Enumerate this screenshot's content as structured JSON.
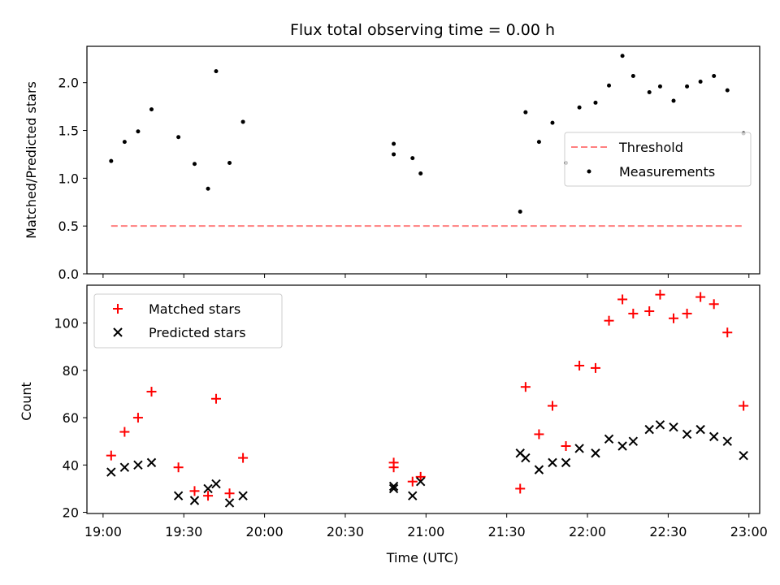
{
  "chart_data": {
    "title": "Flux total observing time = 0.00 h",
    "xlabel": "Time (UTC)",
    "x_ticks": [
      "19:00",
      "19:30",
      "20:00",
      "20:30",
      "21:00",
      "21:30",
      "22:00",
      "22:30",
      "23:00"
    ],
    "panels": [
      {
        "type": "scatter",
        "ylabel": "Matched/Predicted stars",
        "ylim": [
          0,
          2.38
        ],
        "y_ticks": [
          "0.0",
          "0.5",
          "1.0",
          "1.5",
          "2.0"
        ],
        "legend_position": "center-right",
        "series": [
          {
            "name": "Threshold",
            "style": "dashed-line",
            "color": "#ff7f7f",
            "points": [
              [
                "19:03",
                0.5
              ],
              [
                "22:58",
                0.5
              ]
            ]
          },
          {
            "name": "Measurements",
            "style": "dot",
            "color": "#000000",
            "points": [
              [
                "19:03",
                1.18
              ],
              [
                "19:08",
                1.38
              ],
              [
                "19:13",
                1.49
              ],
              [
                "19:18",
                1.72
              ],
              [
                "19:28",
                1.43
              ],
              [
                "19:34",
                1.15
              ],
              [
                "19:39",
                0.89
              ],
              [
                "19:42",
                2.12
              ],
              [
                "19:47",
                1.16
              ],
              [
                "19:52",
                1.59
              ],
              [
                "20:48",
                1.36
              ],
              [
                "20:48",
                1.25
              ],
              [
                "20:55",
                1.21
              ],
              [
                "20:58",
                1.05
              ],
              [
                "21:35",
                0.65
              ],
              [
                "21:37",
                1.69
              ],
              [
                "21:42",
                1.38
              ],
              [
                "21:47",
                1.58
              ],
              [
                "21:52",
                1.16
              ],
              [
                "21:57",
                1.74
              ],
              [
                "22:03",
                1.79
              ],
              [
                "22:08",
                1.97
              ],
              [
                "22:13",
                2.28
              ],
              [
                "22:17",
                2.07
              ],
              [
                "22:23",
                1.9
              ],
              [
                "22:27",
                1.96
              ],
              [
                "22:32",
                1.81
              ],
              [
                "22:37",
                1.96
              ],
              [
                "22:42",
                2.01
              ],
              [
                "22:47",
                2.07
              ],
              [
                "22:52",
                1.92
              ],
              [
                "22:58",
                1.47
              ]
            ]
          }
        ]
      },
      {
        "type": "scatter",
        "ylabel": "Count",
        "ylim": [
          19.5,
          116
        ],
        "y_ticks": [
          "20",
          "40",
          "60",
          "80",
          "100"
        ],
        "legend_position": "upper-left",
        "series": [
          {
            "name": "Matched stars",
            "style": "plus",
            "color": "#ff0000",
            "points": [
              [
                "19:03",
                44
              ],
              [
                "19:08",
                54
              ],
              [
                "19:13",
                60
              ],
              [
                "19:18",
                71
              ],
              [
                "19:28",
                39
              ],
              [
                "19:34",
                29
              ],
              [
                "19:39",
                27
              ],
              [
                "19:42",
                68
              ],
              [
                "19:47",
                28
              ],
              [
                "19:52",
                43
              ],
              [
                "20:48",
                41
              ],
              [
                "20:48",
                39
              ],
              [
                "20:55",
                33
              ],
              [
                "20:58",
                35
              ],
              [
                "21:35",
                30
              ],
              [
                "21:37",
                73
              ],
              [
                "21:42",
                53
              ],
              [
                "21:47",
                65
              ],
              [
                "21:52",
                48
              ],
              [
                "21:57",
                82
              ],
              [
                "22:03",
                81
              ],
              [
                "22:08",
                101
              ],
              [
                "22:13",
                110
              ],
              [
                "22:17",
                104
              ],
              [
                "22:23",
                105
              ],
              [
                "22:27",
                112
              ],
              [
                "22:32",
                102
              ],
              [
                "22:37",
                104
              ],
              [
                "22:42",
                111
              ],
              [
                "22:47",
                108
              ],
              [
                "22:52",
                96
              ],
              [
                "22:58",
                65
              ]
            ]
          },
          {
            "name": "Predicted stars",
            "style": "cross",
            "color": "#000000",
            "points": [
              [
                "19:03",
                37
              ],
              [
                "19:08",
                39
              ],
              [
                "19:13",
                40
              ],
              [
                "19:18",
                41
              ],
              [
                "19:28",
                27
              ],
              [
                "19:34",
                25
              ],
              [
                "19:39",
                30
              ],
              [
                "19:42",
                32
              ],
              [
                "19:47",
                24
              ],
              [
                "19:52",
                27
              ],
              [
                "20:48",
                31
              ],
              [
                "20:48",
                30
              ],
              [
                "20:55",
                27
              ],
              [
                "20:58",
                33
              ],
              [
                "21:35",
                45
              ],
              [
                "21:37",
                43
              ],
              [
                "21:42",
                38
              ],
              [
                "21:47",
                41
              ],
              [
                "21:52",
                41
              ],
              [
                "21:57",
                47
              ],
              [
                "22:03",
                45
              ],
              [
                "22:08",
                51
              ],
              [
                "22:13",
                48
              ],
              [
                "22:17",
                50
              ],
              [
                "22:23",
                55
              ],
              [
                "22:27",
                57
              ],
              [
                "22:32",
                56
              ],
              [
                "22:37",
                53
              ],
              [
                "22:42",
                55
              ],
              [
                "22:47",
                52
              ],
              [
                "22:52",
                50
              ],
              [
                "22:58",
                44
              ]
            ]
          }
        ]
      }
    ]
  }
}
